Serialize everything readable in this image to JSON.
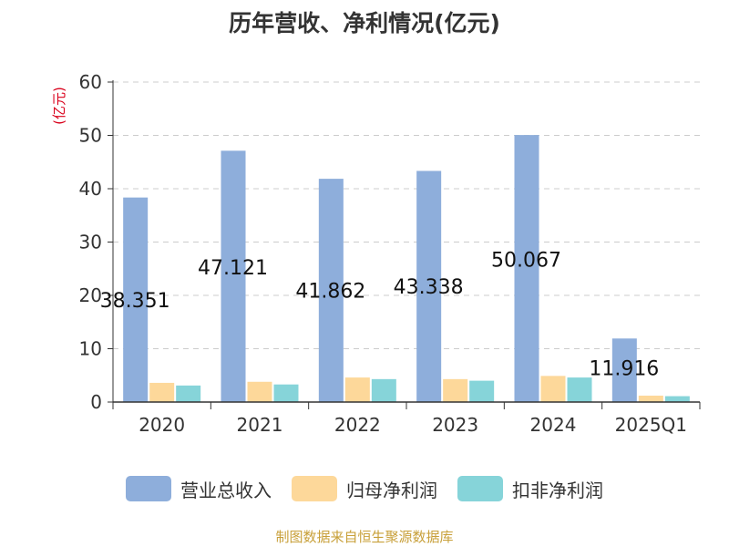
{
  "chart_data": {
    "type": "bar",
    "title": "历年营收、净利情况(亿元)",
    "ylabel": "(亿元)",
    "xlabel": "",
    "ylim": [
      0,
      60
    ],
    "yticks": [
      0,
      10,
      20,
      30,
      40,
      50,
      60
    ],
    "grid": true,
    "legend_position": "bottom",
    "categories": [
      "2020",
      "2021",
      "2022",
      "2023",
      "2024",
      "2025Q1"
    ],
    "series": [
      {
        "name": "营业总收入",
        "color": "#8eaedb",
        "values": [
          38.351,
          47.121,
          41.862,
          43.338,
          50.067,
          11.916
        ],
        "labels": [
          "38.351",
          "47.121",
          "41.862",
          "43.338",
          "50.067",
          "11.916"
        ]
      },
      {
        "name": "归母净利润",
        "color": "#fdd89a",
        "values": [
          3.6,
          3.8,
          4.6,
          4.3,
          4.9,
          1.2
        ]
      },
      {
        "name": "扣非净利润",
        "color": "#86d4d9",
        "values": [
          3.1,
          3.3,
          4.3,
          4.0,
          4.6,
          1.1
        ]
      }
    ],
    "source": "制图数据来自恒生聚源数据库",
    "source_color": "#c8a03a",
    "ylabel_color": "#d9001b"
  }
}
